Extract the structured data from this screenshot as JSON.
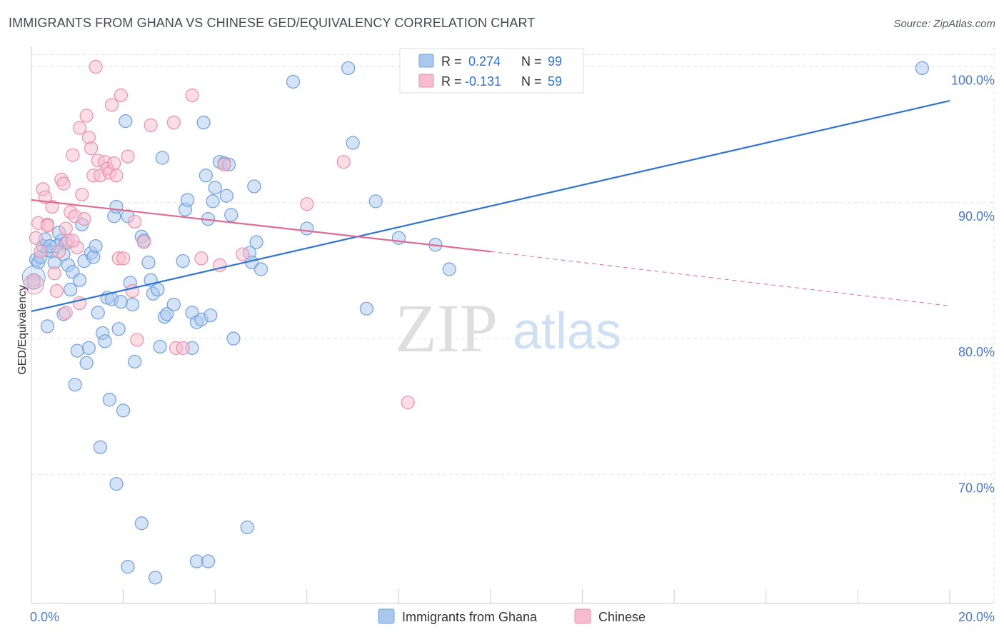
{
  "header": {
    "title": "IMMIGRANTS FROM GHANA VS CHINESE GED/EQUIVALENCY CORRELATION CHART",
    "source": "Source: ZipAtlas.com"
  },
  "watermark": {
    "zip": "ZIP",
    "atlas": "atlas"
  },
  "chart_data": {
    "type": "scatter",
    "title": "IMMIGRANTS FROM GHANA VS CHINESE GED/EQUIVALENCY CORRELATION CHART",
    "xlabel": "",
    "ylabel": "GED/Equivalency",
    "xlim": [
      0,
      20
    ],
    "ylim": [
      60.5,
      101.5
    ],
    "x_tick_labels": [
      {
        "value": 0,
        "label": "0.0%"
      },
      {
        "value": 20,
        "label": "20.0%"
      }
    ],
    "y_tick_labels": [
      {
        "value": 70,
        "label": "70.0%"
      },
      {
        "value": 80,
        "label": "80.0%"
      },
      {
        "value": 90,
        "label": "90.0%"
      },
      {
        "value": 100,
        "label": "100.0%"
      }
    ],
    "grid": true,
    "legend_position": "top-center",
    "stats": [
      {
        "r_label": "R =",
        "r_value": "0.274",
        "n_label": "N =",
        "n_value": "99"
      },
      {
        "r_label": "R =",
        "r_value": "-0.131",
        "n_label": "N =",
        "n_value": "59"
      }
    ],
    "colors": {
      "ghana_fill": "#a9c8ee",
      "ghana_stroke": "#6f9fdc",
      "ghana_line": "#2f74d0",
      "chinese_fill": "#f7bccd",
      "chinese_stroke": "#ea8fab",
      "chinese_line": "#e06a92",
      "tick": "#4a7ac7"
    },
    "series": [
      {
        "name": "Immigrants from Ghana",
        "trend": {
          "x0": 0,
          "y0": 82.0,
          "x1": 20,
          "y1": 97.5
        },
        "points": [
          [
            0.05,
            84.3
          ],
          [
            0.1,
            85.8
          ],
          [
            0.15,
            85.6
          ],
          [
            0.2,
            86.0
          ],
          [
            0.25,
            86.8
          ],
          [
            0.35,
            86.5
          ],
          [
            0.45,
            86.4
          ],
          [
            0.55,
            86.8
          ],
          [
            0.65,
            87.2
          ],
          [
            0.75,
            87.0
          ],
          [
            0.5,
            85.6
          ],
          [
            0.6,
            87.8
          ],
          [
            0.7,
            86.2
          ],
          [
            0.85,
            83.6
          ],
          [
            0.8,
            85.4
          ],
          [
            0.9,
            84.9
          ],
          [
            1.05,
            84.3
          ],
          [
            1.1,
            88.4
          ],
          [
            1.15,
            85.7
          ],
          [
            1.2,
            78.2
          ],
          [
            1.25,
            79.3
          ],
          [
            1.3,
            86.3
          ],
          [
            1.35,
            86.0
          ],
          [
            1.4,
            86.8
          ],
          [
            1.45,
            81.9
          ],
          [
            1.55,
            80.4
          ],
          [
            1.6,
            79.8
          ],
          [
            1.65,
            83.0
          ],
          [
            1.7,
            75.5
          ],
          [
            1.75,
            82.9
          ],
          [
            1.8,
            89.0
          ],
          [
            1.85,
            89.7
          ],
          [
            1.9,
            80.7
          ],
          [
            1.95,
            82.7
          ],
          [
            2.0,
            74.7
          ],
          [
            2.05,
            96.0
          ],
          [
            2.1,
            89.0
          ],
          [
            2.15,
            84.1
          ],
          [
            2.2,
            82.5
          ],
          [
            2.25,
            78.3
          ],
          [
            2.4,
            87.5
          ],
          [
            2.45,
            87.2
          ],
          [
            2.55,
            85.6
          ],
          [
            2.6,
            84.3
          ],
          [
            2.65,
            83.3
          ],
          [
            2.75,
            83.6
          ],
          [
            2.8,
            79.4
          ],
          [
            2.85,
            93.3
          ],
          [
            2.9,
            81.6
          ],
          [
            2.95,
            81.8
          ],
          [
            3.1,
            82.5
          ],
          [
            3.3,
            85.7
          ],
          [
            3.35,
            89.5
          ],
          [
            3.4,
            90.2
          ],
          [
            3.5,
            79.3
          ],
          [
            3.5,
            81.9
          ],
          [
            3.6,
            81.2
          ],
          [
            3.7,
            81.4
          ],
          [
            3.75,
            95.9
          ],
          [
            3.8,
            92.0
          ],
          [
            3.85,
            88.8
          ],
          [
            3.9,
            81.7
          ],
          [
            3.95,
            90.1
          ],
          [
            4.0,
            91.1
          ],
          [
            4.1,
            93.0
          ],
          [
            4.2,
            92.9
          ],
          [
            4.25,
            90.5
          ],
          [
            4.3,
            92.8
          ],
          [
            4.35,
            89.1
          ],
          [
            4.4,
            80.0
          ],
          [
            4.7,
            66.1
          ],
          [
            4.75,
            86.3
          ],
          [
            4.8,
            85.6
          ],
          [
            4.85,
            91.2
          ],
          [
            4.9,
            87.1
          ],
          [
            5.0,
            85.1
          ],
          [
            2.7,
            62.4
          ],
          [
            3.6,
            63.6
          ],
          [
            3.85,
            63.6
          ],
          [
            2.1,
            63.2
          ],
          [
            2.4,
            66.4
          ],
          [
            1.85,
            69.3
          ],
          [
            1.5,
            72.0
          ],
          [
            0.95,
            76.6
          ],
          [
            1.0,
            79.1
          ],
          [
            0.35,
            80.9
          ],
          [
            0.7,
            81.8
          ],
          [
            5.7,
            98.9
          ],
          [
            6.0,
            88.1
          ],
          [
            6.9,
            99.9
          ],
          [
            7.0,
            94.4
          ],
          [
            7.3,
            82.2
          ],
          [
            7.5,
            90.1
          ],
          [
            8.0,
            87.4
          ],
          [
            8.8,
            86.9
          ],
          [
            9.1,
            85.1
          ],
          [
            19.4,
            99.9
          ],
          [
            0.3,
            87.3
          ],
          [
            0.4,
            86.8
          ]
        ]
      },
      {
        "name": "Chinese",
        "trend": {
          "x0": 0,
          "y0": 90.2,
          "x1": 10.0,
          "y1": 86.4,
          "dash_to_x": 20,
          "dash_to_y": 82.4
        },
        "points": [
          [
            0.05,
            84.1
          ],
          [
            0.1,
            87.4
          ],
          [
            0.15,
            88.5
          ],
          [
            0.2,
            86.4
          ],
          [
            0.25,
            91.0
          ],
          [
            0.35,
            88.4
          ],
          [
            0.45,
            89.7
          ],
          [
            0.5,
            84.8
          ],
          [
            0.55,
            83.5
          ],
          [
            0.65,
            91.7
          ],
          [
            0.7,
            91.4
          ],
          [
            0.75,
            88.1
          ],
          [
            0.8,
            87.2
          ],
          [
            0.85,
            89.3
          ],
          [
            0.9,
            93.5
          ],
          [
            0.95,
            89.0
          ],
          [
            1.0,
            86.7
          ],
          [
            1.05,
            95.5
          ],
          [
            1.1,
            90.6
          ],
          [
            1.15,
            88.8
          ],
          [
            1.2,
            96.4
          ],
          [
            1.25,
            94.8
          ],
          [
            1.3,
            94.0
          ],
          [
            1.35,
            92.0
          ],
          [
            1.45,
            93.1
          ],
          [
            1.5,
            92.0
          ],
          [
            1.6,
            93.0
          ],
          [
            1.65,
            92.5
          ],
          [
            1.7,
            92.2
          ],
          [
            1.75,
            97.2
          ],
          [
            1.8,
            92.9
          ],
          [
            1.85,
            92.0
          ],
          [
            1.95,
            97.9
          ],
          [
            1.9,
            85.9
          ],
          [
            2.0,
            85.9
          ],
          [
            2.1,
            93.4
          ],
          [
            2.2,
            83.5
          ],
          [
            2.25,
            88.6
          ],
          [
            2.3,
            79.9
          ],
          [
            2.45,
            87.1
          ],
          [
            2.6,
            95.7
          ],
          [
            3.1,
            95.9
          ],
          [
            3.15,
            79.3
          ],
          [
            3.3,
            79.3
          ],
          [
            3.5,
            97.9
          ],
          [
            3.7,
            85.9
          ],
          [
            4.1,
            85.4
          ],
          [
            4.2,
            92.8
          ],
          [
            4.6,
            86.2
          ],
          [
            6.0,
            89.9
          ],
          [
            6.8,
            93.0
          ],
          [
            8.2,
            75.3
          ],
          [
            1.4,
            100.0
          ],
          [
            0.3,
            90.4
          ],
          [
            0.6,
            86.4
          ],
          [
            1.05,
            82.6
          ],
          [
            0.9,
            87.2
          ],
          [
            0.35,
            88.3
          ],
          [
            0.75,
            81.9
          ]
        ]
      }
    ]
  },
  "legend": {
    "items": [
      {
        "label": "Immigrants from Ghana"
      },
      {
        "label": "Chinese"
      }
    ]
  }
}
